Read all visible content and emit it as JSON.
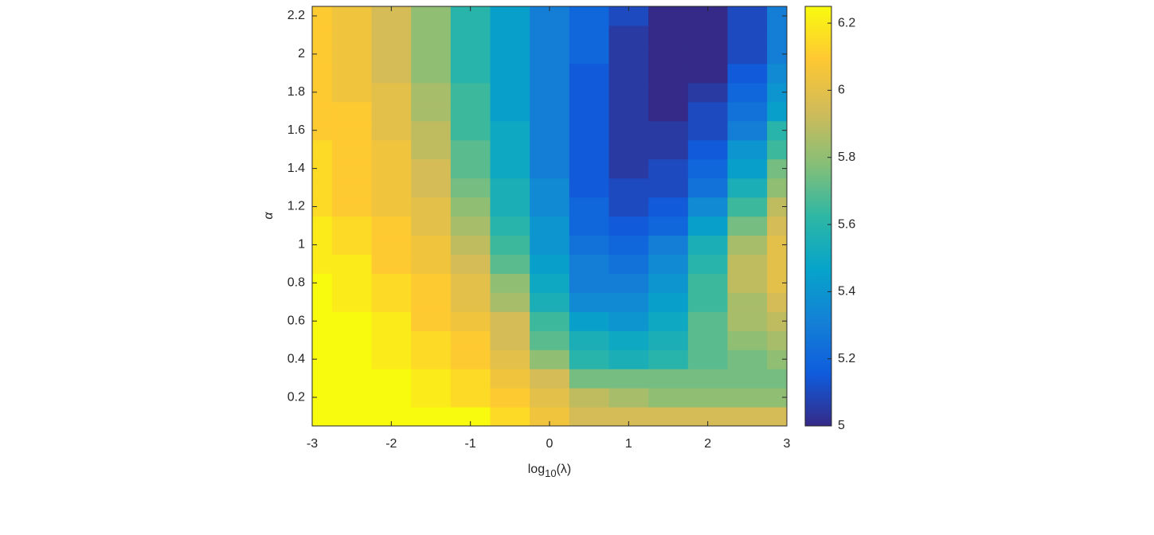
{
  "chart_data": {
    "type": "heatmap",
    "xlabel": [
      "log",
      "10",
      "(λ)"
    ],
    "ylabel": "α",
    "x": [
      -3,
      -2.5,
      -2,
      -1.5,
      -1,
      -0.5,
      0,
      0.5,
      1,
      1.5,
      2,
      2.5,
      3
    ],
    "y": [
      0.1,
      0.2,
      0.3,
      0.4,
      0.5,
      0.6,
      0.7,
      0.8,
      0.9,
      1.0,
      1.1,
      1.2,
      1.3,
      1.4,
      1.5,
      1.6,
      1.7,
      1.8,
      1.9,
      2.0,
      2.1,
      2.2
    ],
    "z": [
      [
        6.25,
        6.25,
        6.25,
        6.25,
        6.25,
        6.15,
        6.05,
        5.95,
        5.95,
        5.95,
        5.95,
        5.95,
        5.95
      ],
      [
        6.25,
        6.25,
        6.25,
        6.2,
        6.15,
        6.1,
        6.0,
        5.9,
        5.85,
        5.8,
        5.8,
        5.8,
        5.8
      ],
      [
        6.25,
        6.25,
        6.25,
        6.2,
        6.15,
        6.05,
        5.95,
        5.75,
        5.75,
        5.75,
        5.75,
        5.75,
        5.75
      ],
      [
        6.25,
        6.25,
        6.2,
        6.15,
        6.1,
        6.0,
        5.8,
        5.6,
        5.55,
        5.6,
        5.7,
        5.75,
        5.8
      ],
      [
        6.25,
        6.25,
        6.2,
        6.15,
        6.1,
        5.95,
        5.7,
        5.55,
        5.5,
        5.55,
        5.7,
        5.8,
        5.85
      ],
      [
        6.25,
        6.25,
        6.2,
        6.1,
        6.05,
        5.95,
        5.65,
        5.45,
        5.4,
        5.5,
        5.7,
        5.85,
        5.9
      ],
      [
        6.25,
        6.2,
        6.15,
        6.1,
        6.0,
        5.85,
        5.55,
        5.35,
        5.35,
        5.45,
        5.65,
        5.85,
        5.95
      ],
      [
        6.25,
        6.2,
        6.15,
        6.1,
        6.0,
        5.8,
        5.5,
        5.3,
        5.3,
        5.4,
        5.65,
        5.9,
        6.0
      ],
      [
        6.2,
        6.2,
        6.1,
        6.05,
        5.95,
        5.7,
        5.45,
        5.3,
        5.25,
        5.35,
        5.6,
        5.9,
        6.0
      ],
      [
        6.2,
        6.15,
        6.1,
        6.05,
        5.9,
        5.65,
        5.4,
        5.25,
        5.2,
        5.3,
        5.55,
        5.85,
        6.0
      ],
      [
        6.2,
        6.15,
        6.1,
        6.0,
        5.85,
        5.6,
        5.4,
        5.2,
        5.15,
        5.2,
        5.45,
        5.75,
        5.95
      ],
      [
        6.15,
        6.1,
        6.05,
        6.0,
        5.8,
        5.55,
        5.35,
        5.2,
        5.1,
        5.15,
        5.35,
        5.65,
        5.9
      ],
      [
        6.15,
        6.1,
        6.05,
        5.95,
        5.75,
        5.55,
        5.35,
        5.15,
        5.1,
        5.1,
        5.25,
        5.55,
        5.8
      ],
      [
        6.15,
        6.1,
        6.05,
        5.95,
        5.7,
        5.5,
        5.3,
        5.15,
        5.05,
        5.1,
        5.2,
        5.45,
        5.75
      ],
      [
        6.15,
        6.1,
        6.05,
        5.9,
        5.7,
        5.5,
        5.3,
        5.15,
        5.05,
        5.05,
        5.15,
        5.4,
        5.65
      ],
      [
        6.1,
        6.1,
        6.0,
        5.9,
        5.65,
        5.5,
        5.3,
        5.15,
        5.05,
        5.05,
        5.1,
        5.3,
        5.6
      ],
      [
        6.1,
        6.1,
        6.0,
        5.85,
        5.65,
        5.45,
        5.3,
        5.15,
        5.05,
        5.0,
        5.1,
        5.25,
        5.45
      ],
      [
        6.1,
        6.05,
        6.0,
        5.85,
        5.65,
        5.45,
        5.3,
        5.15,
        5.05,
        5.0,
        5.05,
        5.2,
        5.4
      ],
      [
        6.1,
        6.05,
        5.95,
        5.8,
        5.6,
        5.45,
        5.3,
        5.15,
        5.05,
        5.0,
        5.0,
        5.15,
        5.35
      ],
      [
        6.1,
        6.05,
        5.95,
        5.8,
        5.6,
        5.45,
        5.3,
        5.2,
        5.05,
        5.0,
        5.0,
        5.1,
        5.3
      ],
      [
        6.1,
        6.05,
        5.95,
        5.8,
        5.6,
        5.45,
        5.3,
        5.2,
        5.05,
        5.0,
        5.0,
        5.1,
        5.3
      ],
      [
        6.1,
        6.05,
        5.95,
        5.8,
        5.6,
        5.45,
        5.3,
        5.2,
        5.1,
        5.0,
        5.0,
        5.1,
        5.3
      ]
    ],
    "xlim": [
      -3,
      3
    ],
    "xticks": [
      -3,
      -2,
      -1,
      0,
      1,
      2,
      3
    ],
    "ylim": [
      0.05,
      2.25
    ],
    "yticks": [
      0.2,
      0.4,
      0.6,
      0.8,
      1,
      1.2,
      1.4,
      1.6,
      1.8,
      2,
      2.2
    ],
    "clim": [
      5,
      6.25
    ],
    "cticks": [
      5,
      5.2,
      5.4,
      5.6,
      5.8,
      6,
      6.2
    ],
    "colormap": [
      "#352a87",
      "#0f5cdd",
      "#1481d6",
      "#06a4ca",
      "#2eb7a4",
      "#87bf77",
      "#d1bb59",
      "#fec832",
      "#f9fb0e"
    ],
    "colorbar": true
  }
}
